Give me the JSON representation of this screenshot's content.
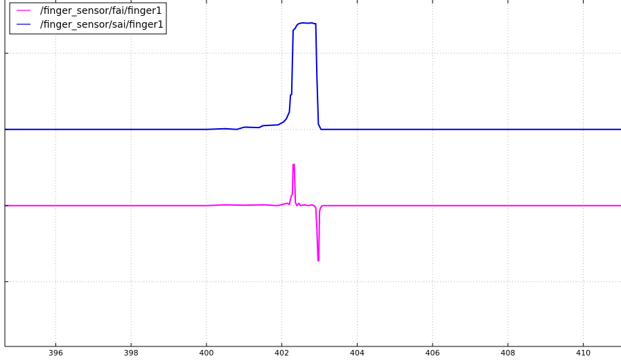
{
  "chart_data": {
    "type": "line",
    "title": "",
    "xlabel": "",
    "ylabel": "",
    "xlim": [
      394.65,
      411.0
    ],
    "ylim": [
      -3.7,
      5.4
    ],
    "x_ticks": [
      396,
      398,
      400,
      402,
      404,
      406,
      408,
      410
    ],
    "x_tick_labels": [
      "396",
      "398",
      "400",
      "402",
      "404",
      "406",
      "408",
      "410"
    ],
    "y_ticks": [
      -2,
      0,
      2,
      4
    ],
    "grid": true,
    "legend_placement": "top-left",
    "series": [
      {
        "name": "/finger_sensor/fai/finger1",
        "color": "#ff00ff",
        "x": [
          394.65,
          400.0,
          400.5,
          401.0,
          401.5,
          401.9,
          402.05,
          402.15,
          402.2,
          402.25,
          402.28,
          402.3,
          402.33,
          402.36,
          402.4,
          402.45,
          402.5,
          402.6,
          402.7,
          402.8,
          402.85,
          402.9,
          402.93,
          402.96,
          402.98,
          403.0,
          403.03,
          403.08,
          403.2,
          411.0
        ],
        "values": [
          0.0,
          0.0,
          0.02,
          0.01,
          0.02,
          0.0,
          0.04,
          0.06,
          0.03,
          0.25,
          0.3,
          1.08,
          1.08,
          0.08,
          0.0,
          0.06,
          0.0,
          0.02,
          0.0,
          0.02,
          0.0,
          -0.05,
          -0.6,
          -1.45,
          -1.45,
          -0.15,
          -0.05,
          0.0,
          0.0,
          0.0
        ]
      },
      {
        "name": "/finger_sensor/sai/finger1",
        "color": "#0000dd",
        "x": [
          394.65,
          400.0,
          400.5,
          400.8,
          401.0,
          401.4,
          401.5,
          401.9,
          402.05,
          402.12,
          402.2,
          402.23,
          402.26,
          402.3,
          402.35,
          402.4,
          402.45,
          402.55,
          402.7,
          402.8,
          402.85,
          402.9,
          402.93,
          402.97,
          403.0,
          403.04,
          403.1,
          411.0
        ],
        "values": [
          2.0,
          2.0,
          2.02,
          2.0,
          2.06,
          2.05,
          2.1,
          2.12,
          2.2,
          2.28,
          2.46,
          2.9,
          2.92,
          4.6,
          4.65,
          4.74,
          4.78,
          4.8,
          4.79,
          4.8,
          4.78,
          4.78,
          3.4,
          2.14,
          2.08,
          2.0,
          2.0,
          2.0
        ]
      }
    ]
  }
}
